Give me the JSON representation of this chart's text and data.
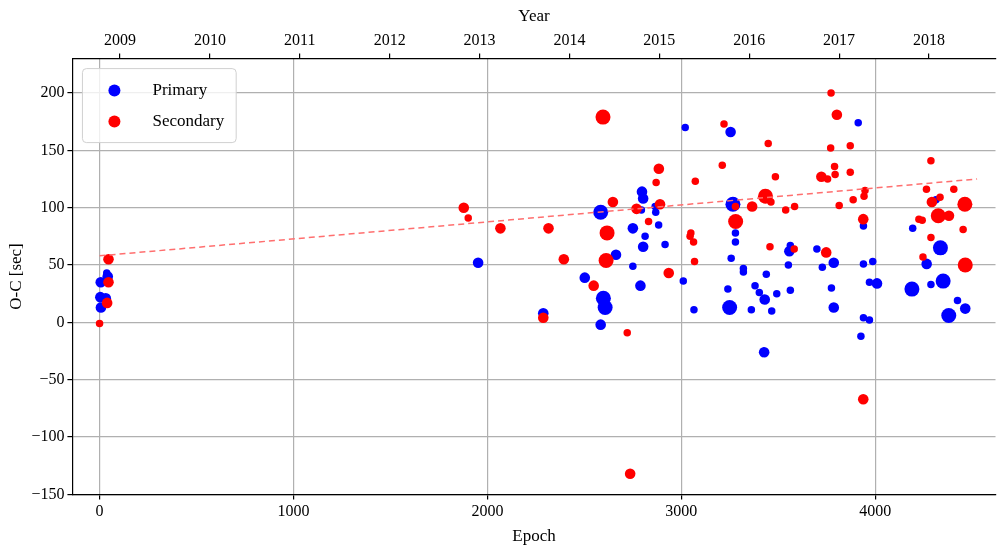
{
  "chart_data": {
    "type": "bubble",
    "xlabel": "Epoch",
    "ylabel": "O-C [sec]",
    "x2label": "Year",
    "xlim": [
      -140,
      4620
    ],
    "xticks": [
      0,
      1000,
      2000,
      3000,
      4000
    ],
    "x2lim": [
      2008.47,
      2018.74
    ],
    "x2ticks": [
      2009,
      2010,
      2011,
      2012,
      2013,
      2014,
      2015,
      2016,
      2017,
      2018
    ],
    "ylim": [
      -150,
      230
    ],
    "yticks": [
      -150,
      -100,
      -50,
      0,
      50,
      100,
      150,
      200
    ],
    "grid": true,
    "legend": "top left",
    "marker": "circle",
    "series": [
      {
        "name": "Primary",
        "color": "#0000ff",
        "x": [
          7,
          4,
          6,
          37,
          42,
          32,
          1952,
          2288,
          2584,
          2502,
          2598,
          2607,
          2584,
          2789,
          2750,
          2803,
          2797,
          2803,
          2794,
          2813,
          2750,
          2868,
          2865,
          2883,
          2916,
          3010,
          3020,
          3065,
          3254,
          3266,
          3279,
          3279,
          3257,
          3249,
          3240,
          3320,
          3320,
          3361,
          3380,
          3402,
          3438,
          3430,
          3427,
          3466,
          3492,
          3552,
          3562,
          3557,
          3562,
          3699,
          3786,
          3727,
          3774,
          3786,
          3912,
          3939,
          3939,
          3987,
          3970,
          4009,
          3926,
          3939,
          3970,
          4189,
          4193,
          4313,
          4336,
          4265,
          4287,
          4350,
          4424,
          4464,
          4379,
          2663
        ],
        "values": [
          13,
          22,
          35,
          43,
          40,
          21,
          52,
          8,
          96,
          39,
          21,
          13,
          -2,
          32,
          82,
          66,
          114,
          108,
          98,
          75,
          49,
          96,
          101,
          85,
          68,
          36,
          170,
          11,
          166,
          103,
          78,
          70,
          56,
          13,
          29,
          47,
          44,
          11,
          32,
          26,
          42,
          20,
          -26,
          10,
          25,
          50,
          67,
          62,
          28,
          64,
          52,
          48,
          30,
          13,
          174,
          84,
          51,
          53,
          35,
          34,
          -12,
          4,
          2,
          29,
          82,
          107,
          65,
          51,
          33,
          36,
          19,
          12,
          6,
          59
        ],
        "sizes": [
          0.5,
          0.5,
          0.5,
          0.25,
          0.5,
          0.5,
          0.5,
          0.5,
          1,
          0.5,
          1,
          1,
          0.5,
          0.5,
          0.5,
          0.5,
          0.5,
          0.5,
          0.25,
          0.25,
          0.25,
          0.25,
          0.25,
          0.25,
          0.25,
          0.25,
          0.25,
          0.25,
          0.5,
          1,
          0.25,
          0.25,
          0.25,
          1,
          0.25,
          0.25,
          0.25,
          0.25,
          0.25,
          0.25,
          0.25,
          0.5,
          0.5,
          0.25,
          0.25,
          0.25,
          0.25,
          0.5,
          0.25,
          0.25,
          0.5,
          0.25,
          0.25,
          0.5,
          0.25,
          0.25,
          0.25,
          0.25,
          0.25,
          0.5,
          0.25,
          0.25,
          0.25,
          1,
          0.25,
          0.25,
          1,
          0.5,
          0.25,
          1,
          0.25,
          0.5,
          1,
          0.5
        ]
      },
      {
        "name": "Secondary",
        "color": "#ff0000",
        "x": [
          0,
          46,
          39,
          46,
          1878,
          1901,
          2067,
          2315,
          2394,
          2288,
          2596,
          2647,
          2617,
          2612,
          2548,
          2721,
          2736,
          2769,
          2831,
          2890,
          2870,
          2884,
          2935,
          3072,
          3049,
          3045,
          3063,
          3068,
          3211,
          3220,
          3280,
          3279,
          3365,
          3434,
          3462,
          3448,
          3485,
          3457,
          3582,
          3538,
          3584,
          3722,
          3754,
          3772,
          3802,
          3770,
          3790,
          3793,
          3814,
          3871,
          3871,
          3886,
          3947,
          3942,
          3938,
          3747,
          3938,
          4225,
          4242,
          4287,
          4264,
          4292,
          4334,
          4325,
          4380,
          4405,
          4462,
          4453,
          4464,
          4287,
          4246
        ],
        "values": [
          -1,
          35,
          17,
          55,
          100,
          91,
          82,
          82,
          55,
          4,
          179,
          105,
          78,
          54,
          32,
          -9,
          -132,
          99,
          88,
          103,
          122,
          134,
          43,
          123,
          78,
          75,
          70,
          53,
          137,
          173,
          88,
          101,
          101,
          110,
          105,
          156,
          127,
          66,
          64,
          98,
          101,
          127,
          125,
          200,
          181,
          152,
          136,
          129,
          102,
          154,
          131,
          107,
          115,
          110,
          90,
          61,
          -67,
          90,
          89,
          141,
          116,
          105,
          109,
          93,
          93,
          116,
          103,
          81,
          50,
          74,
          57
        ],
        "sizes": [
          0.25,
          0.5,
          0.5,
          0.5,
          0.5,
          0.25,
          0.5,
          0.5,
          0.5,
          0.5,
          1,
          0.5,
          1,
          1,
          0.5,
          0.25,
          0.5,
          0.5,
          0.25,
          0.5,
          0.25,
          0.5,
          0.5,
          0.25,
          0.25,
          0.25,
          0.25,
          0.25,
          0.25,
          0.25,
          1,
          0.25,
          0.5,
          1,
          0.25,
          0.25,
          0.25,
          0.25,
          0.25,
          0.25,
          0.25,
          0.5,
          0.25,
          0.25,
          0.5,
          0.25,
          0.25,
          0.25,
          0.25,
          0.25,
          0.25,
          0.25,
          0.25,
          0.25,
          0.5,
          0.5,
          0.5,
          0.25,
          0.25,
          0.25,
          0.25,
          0.5,
          0.25,
          1,
          0.5,
          0.25,
          1,
          0.25,
          1,
          0.25,
          0.25
        ]
      },
      {
        "type": "line",
        "color": "#ff6f6f",
        "line_style": "dashed",
        "marker": "none",
        "x": [
          0,
          4525
        ],
        "values": [
          58,
          125
        ]
      }
    ]
  }
}
